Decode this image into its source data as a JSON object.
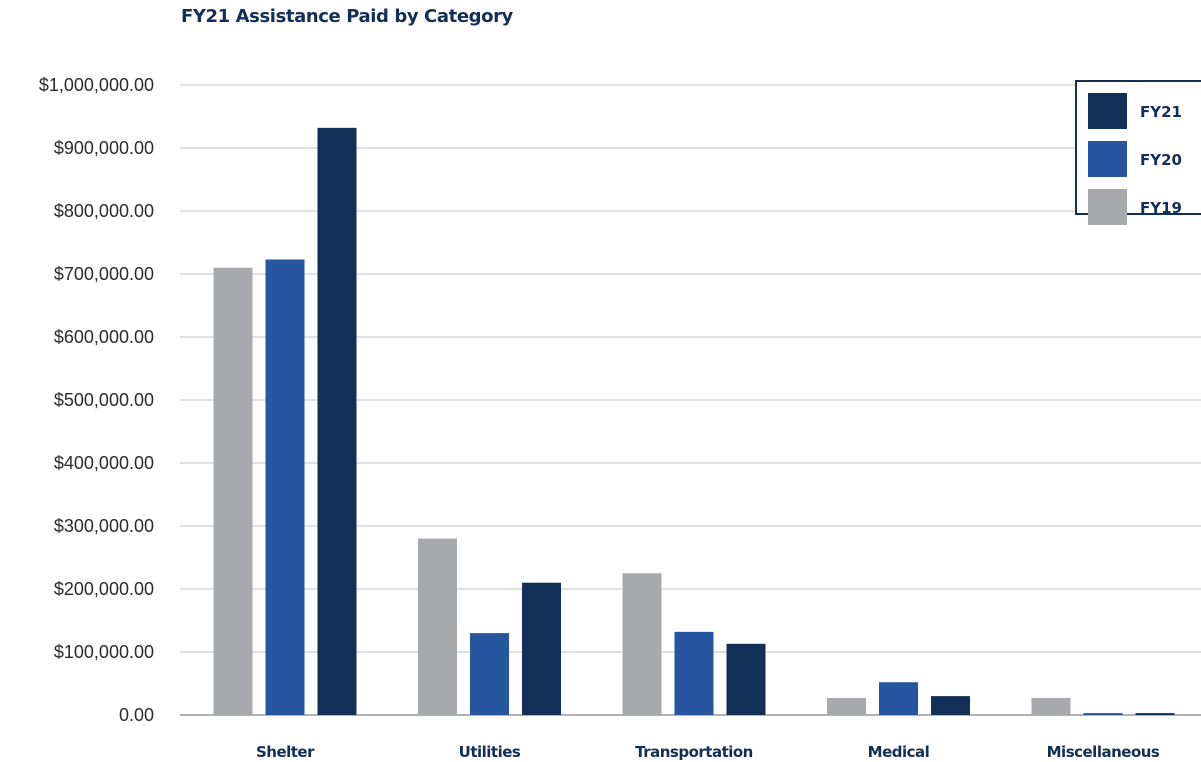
{
  "chart_data": {
    "type": "bar",
    "title": "FY21 Assistance Paid by Category",
    "xlabel": "",
    "ylabel": "",
    "categories": [
      "Shelter",
      "Utilities",
      "Transportation",
      "Medical",
      "Miscellaneous"
    ],
    "series": [
      {
        "name": "FY19",
        "color": "#a8a9ad",
        "values": [
          710000,
          280000,
          225000,
          27000,
          27000
        ]
      },
      {
        "name": "FY20",
        "color": "#2756a0",
        "values": [
          723000,
          130000,
          132000,
          52000,
          3000
        ]
      },
      {
        "name": "FY21",
        "color": "#112f57",
        "values": [
          932000,
          210000,
          113000,
          30000,
          3000
        ]
      }
    ],
    "ylim": [
      0,
      1000000
    ],
    "yticks": [
      0,
      100000,
      200000,
      300000,
      400000,
      500000,
      600000,
      700000,
      800000,
      900000,
      1000000
    ],
    "ytick_labels": [
      "0.00",
      "$100,000.00",
      "$200,000.00",
      "$300,000.00",
      "$400,000.00",
      "$500,000.00",
      "$600,000.00",
      "$700,000.00",
      "$800,000.00",
      "$900,000.00",
      "$1,000,000.00"
    ],
    "legend_order": [
      "FY21",
      "FY20",
      "FY19"
    ],
    "legend_position": "top-right",
    "grid": true
  }
}
